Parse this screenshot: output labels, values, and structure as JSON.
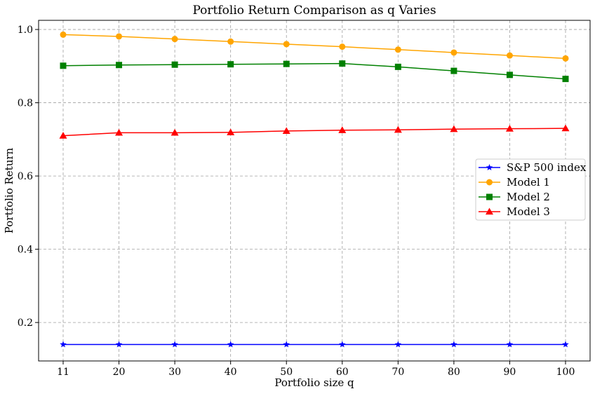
{
  "chart_data": {
    "type": "line",
    "title": "Portfolio Return Comparison as q Varies",
    "xlabel": "Portfolio size q",
    "ylabel": "Portfolio Return",
    "x": [
      11,
      20,
      30,
      40,
      50,
      60,
      70,
      80,
      90,
      100
    ],
    "x_tick_labels": [
      "11",
      "20",
      "30",
      "40",
      "50",
      "60",
      "70",
      "80",
      "90",
      "100"
    ],
    "y_ticks": [
      0.2,
      0.4,
      0.6,
      0.8,
      1.0
    ],
    "y_tick_labels": [
      "0.2",
      "0.4",
      "0.6",
      "0.8",
      "1.0"
    ],
    "ylim": [
      0.095,
      1.025
    ],
    "x_scale": "categorical, evenly spaced",
    "grid": true,
    "legend_position": "center-right",
    "series": [
      {
        "name": "S&P 500 index",
        "color": "#0000ff",
        "marker": "star",
        "values": [
          0.14,
          0.14,
          0.14,
          0.14,
          0.14,
          0.14,
          0.14,
          0.14,
          0.14,
          0.14
        ]
      },
      {
        "name": "Model 1",
        "color": "#ffa500",
        "marker": "circle",
        "values": [
          0.986,
          0.981,
          0.974,
          0.967,
          0.96,
          0.953,
          0.945,
          0.937,
          0.929,
          0.921
        ]
      },
      {
        "name": "Model 2",
        "color": "#008000",
        "marker": "square",
        "values": [
          0.901,
          0.903,
          0.904,
          0.905,
          0.906,
          0.907,
          0.898,
          0.887,
          0.876,
          0.865
        ]
      },
      {
        "name": "Model 3",
        "color": "#ff0000",
        "marker": "triangle",
        "values": [
          0.71,
          0.718,
          0.718,
          0.719,
          0.723,
          0.725,
          0.726,
          0.728,
          0.729,
          0.73
        ]
      }
    ]
  }
}
